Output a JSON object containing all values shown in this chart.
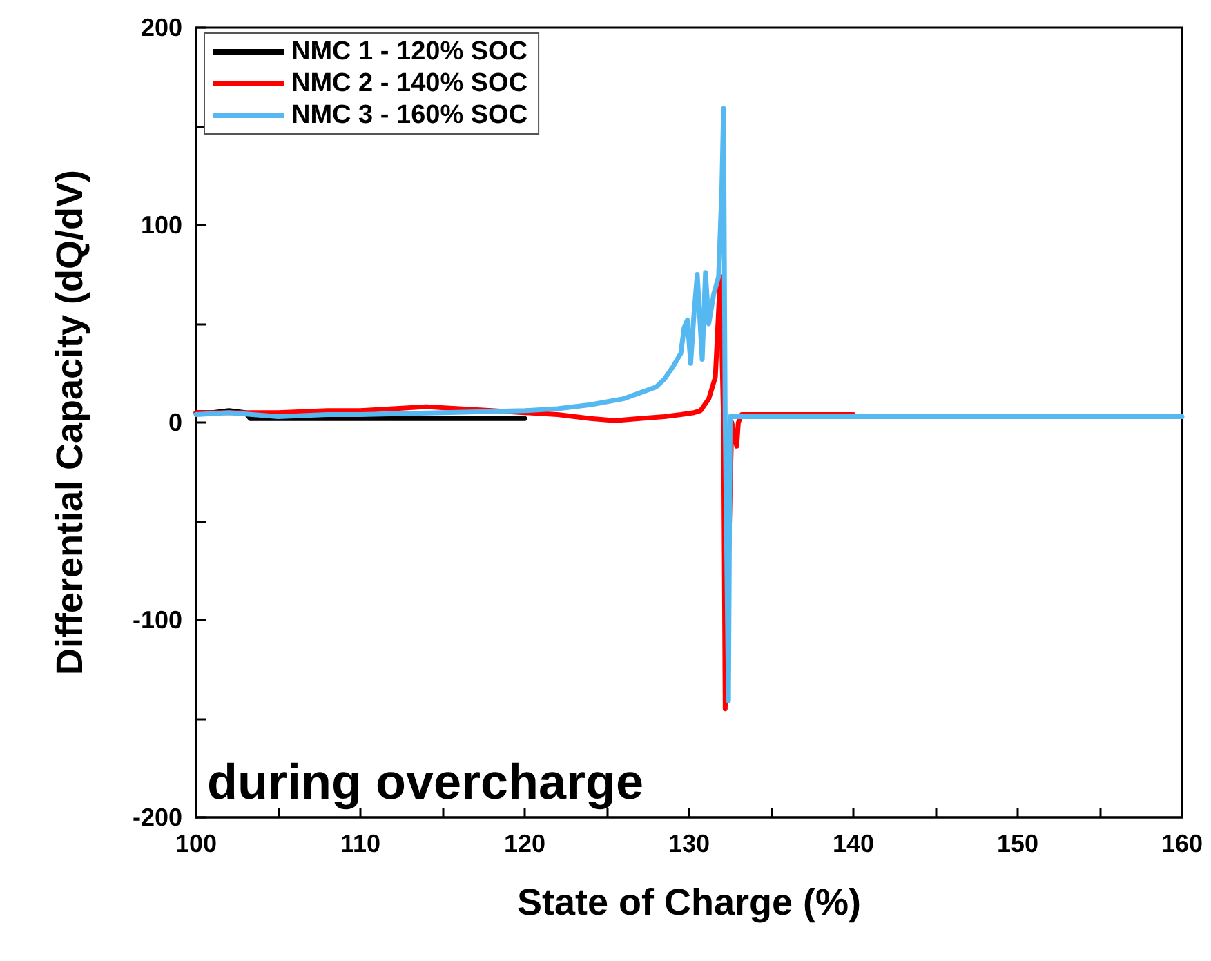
{
  "chart_data": {
    "type": "line",
    "xlabel": "State of Charge (%)",
    "ylabel": "Differential Capacity (dQ/dV)",
    "xlim": [
      100,
      160
    ],
    "xticks": [
      100,
      {
        "value": 105,
        "label": null
      },
      110,
      {
        "value": 115,
        "label": null
      },
      120,
      {
        "value": 125,
        "label": null
      },
      130,
      {
        "value": 135,
        "label": null
      },
      140,
      {
        "value": 145,
        "label": null
      },
      150,
      {
        "value": 155,
        "label": null
      },
      160
    ],
    "ylim": [
      -200,
      200
    ],
    "yticks": [
      -200,
      {
        "value": -150,
        "label": null
      },
      -100,
      {
        "value": -50,
        "label": null
      },
      0,
      {
        "value": 50,
        "label": null
      },
      100,
      {
        "value": 150,
        "label": null
      },
      200
    ],
    "legend": "top left",
    "grid": false,
    "marker": "none",
    "line_style": "solid",
    "annotations": [
      "during overcharge"
    ],
    "series": [
      {
        "name": "NMC 1 - 120% SOC",
        "color": "#000000",
        "x": [
          100,
          101,
          102,
          103,
          103.3,
          106,
          110,
          115,
          120
        ],
        "values": [
          5,
          5,
          6,
          5,
          2,
          2,
          2,
          2,
          2
        ]
      },
      {
        "name": "NMC 2 - 140% SOC",
        "color": "#ff0000",
        "x": [
          100,
          102,
          105,
          108,
          110,
          112,
          114,
          116,
          118,
          120,
          122,
          124,
          125.5,
          127,
          128.5,
          129.5,
          130.3,
          130.7,
          131.2,
          131.6,
          131.9,
          132.1,
          132.2,
          132.6,
          132.9,
          133.0,
          133.2,
          135,
          140
        ],
        "values": [
          5,
          5,
          5,
          6,
          6,
          7,
          8,
          7,
          6,
          5,
          4,
          2,
          1,
          2,
          3,
          4,
          5,
          6,
          12,
          23,
          74,
          0,
          -145,
          0,
          -12,
          0,
          4,
          4,
          4
        ]
      },
      {
        "name": "NMC 3 - 160% SOC",
        "color": "#55b8f0",
        "x": [
          100,
          102,
          105,
          108,
          110,
          115,
          120,
          122,
          124,
          126,
          127,
          128,
          128.5,
          129,
          129.5,
          129.7,
          129.9,
          130.1,
          130.3,
          130.5,
          130.8,
          131.0,
          131.2,
          131.5,
          131.8,
          132.0,
          132.1,
          132.2,
          132.4,
          132.5,
          135,
          140,
          150,
          160
        ],
        "values": [
          4,
          5,
          3,
          4,
          4,
          5,
          6,
          7,
          9,
          12,
          15,
          18,
          22,
          28,
          35,
          48,
          52,
          30,
          55,
          75,
          32,
          76,
          50,
          65,
          74,
          120,
          159,
          0,
          -141,
          3,
          3,
          3,
          3,
          3
        ]
      }
    ]
  }
}
